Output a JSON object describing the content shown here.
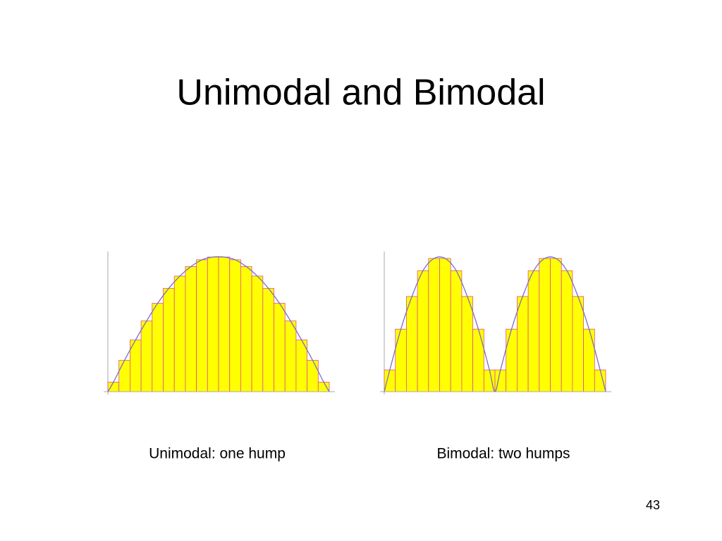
{
  "slide": {
    "title": "Unimodal and Bimodal",
    "page_number": "43"
  },
  "chart_data": [
    {
      "type": "bar",
      "caption": "Unimodal: one hump",
      "color": "#ffff00",
      "values": [
        7,
        23,
        38,
        52,
        65,
        76,
        85,
        92,
        97,
        99,
        99,
        97,
        92,
        85,
        76,
        65,
        52,
        38,
        23,
        7
      ],
      "ylim": [
        0,
        100
      ]
    },
    {
      "type": "bar",
      "caption": "Bimodal: two humps",
      "color": "#ffff00",
      "values": [
        16,
        46,
        70,
        89,
        98,
        98,
        89,
        70,
        46,
        16,
        16,
        46,
        70,
        89,
        98,
        98,
        89,
        70,
        46,
        16
      ],
      "ylim": [
        0,
        100
      ]
    }
  ]
}
